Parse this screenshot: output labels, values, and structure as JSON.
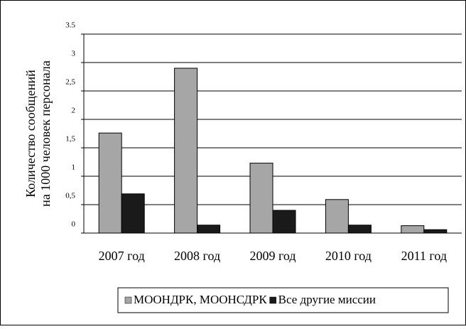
{
  "chart_data": {
    "type": "bar",
    "ylabel": [
      "Количество сообщений",
      "на 1000 человек персонала"
    ],
    "categories": [
      "2007 год",
      "2008 год",
      "2009 год",
      "2010 год",
      "2011 год"
    ],
    "series": [
      {
        "name": "МООНДРК, МООНСДРК",
        "color": "#a6a6a6",
        "values": [
          1.76,
          2.9,
          1.23,
          0.59,
          0.13
        ]
      },
      {
        "name": "Все другие миссии",
        "color": "#1a1a1a",
        "values": [
          0.69,
          0.14,
          0.4,
          0.14,
          0.06
        ]
      }
    ],
    "ylim": [
      0,
      3.5
    ],
    "yticks": [
      0,
      {
        "value": 0.5,
        "label": "0,5"
      },
      1,
      {
        "value": 1.5,
        "label": "1,5"
      },
      2,
      {
        "value": 2.5,
        "label": "2,5"
      },
      3,
      3.5
    ],
    "grid": true,
    "legend": "bottom"
  }
}
